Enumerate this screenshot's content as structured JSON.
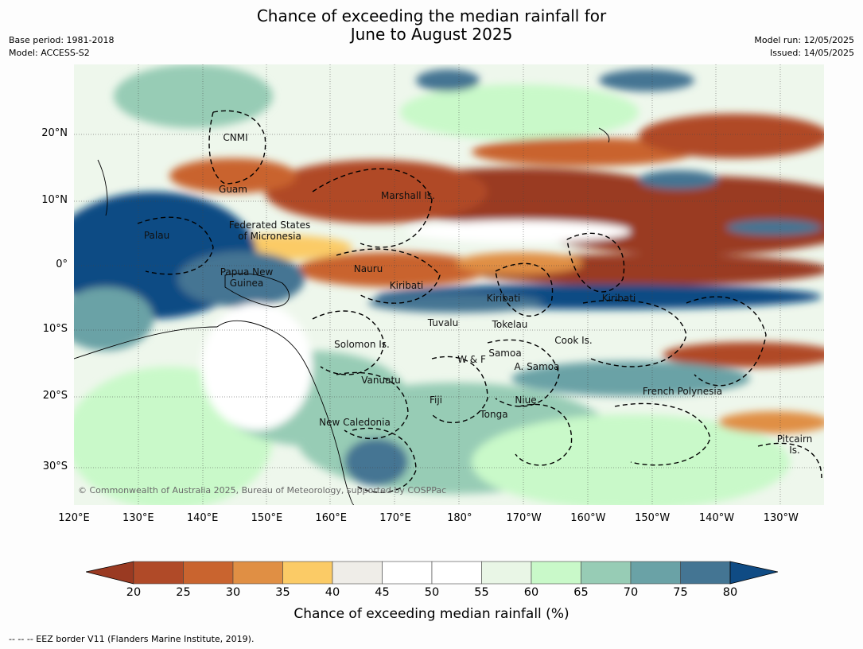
{
  "header": {
    "title_line1": "Chance of exceeding the median rainfall for",
    "title_line2": "June to August 2025",
    "left_line1": "Base period: 1981-2018",
    "left_line2": "Model: ACCESS-S2",
    "right_line1": "Model run: 12/05/2025",
    "right_line2": "Issued: 14/05/2025"
  },
  "map": {
    "lon_ticks": [
      "120°E",
      "130°E",
      "140°E",
      "150°E",
      "160°E",
      "170°E",
      "180°",
      "170°W",
      "160°W",
      "150°W",
      "140°W",
      "130°W"
    ],
    "lat_ticks": [
      "20°N",
      "10°N",
      "0°",
      "10°S",
      "20°S",
      "30°S"
    ],
    "places": [
      {
        "text": "CNMI"
      },
      {
        "text": "Guam"
      },
      {
        "text": "Marshall Is."
      },
      {
        "text": "Federated States\nof Micronesia"
      },
      {
        "text": "Palau"
      },
      {
        "text": "Nauru"
      },
      {
        "text": "Papua New\nGuinea"
      },
      {
        "text": "Kiribati"
      },
      {
        "text": "Kiribati"
      },
      {
        "text": "Kiribati"
      },
      {
        "text": "Tuvalu"
      },
      {
        "text": "Tokelau"
      },
      {
        "text": "Cook Is."
      },
      {
        "text": "Solomon Is."
      },
      {
        "text": "Samoa"
      },
      {
        "text": "W & F"
      },
      {
        "text": "A. Samoa"
      },
      {
        "text": "Vanuatu"
      },
      {
        "text": "Fiji"
      },
      {
        "text": "Niue"
      },
      {
        "text": "French Polynesia"
      },
      {
        "text": "Tonga"
      },
      {
        "text": "New Caledonia"
      },
      {
        "text": "Pitcairn\nIs."
      }
    ],
    "copyright": "© Commonwealth of Australia 2025, Bureau of Meteorology, supported by COSPPac"
  },
  "colorbar": {
    "colors": [
      "#9a3a22",
      "#b04a28",
      "#c9642f",
      "#e08f44",
      "#fbcb66",
      "#efede8",
      "#ffffff",
      "#ffffff",
      "#e9f6e6",
      "#c9f9c9",
      "#97ccb5",
      "#6aa2a6",
      "#447593",
      "#0f4b84"
    ],
    "labels": [
      "20",
      "25",
      "30",
      "35",
      "40",
      "45",
      "50",
      "55",
      "60",
      "65",
      "70",
      "75",
      "80"
    ],
    "title": "Chance of exceeding median rainfall (%)"
  },
  "footer": {
    "text": "--  --  -- EEZ border V11 (Flanders Marine Institute, 2019)."
  }
}
